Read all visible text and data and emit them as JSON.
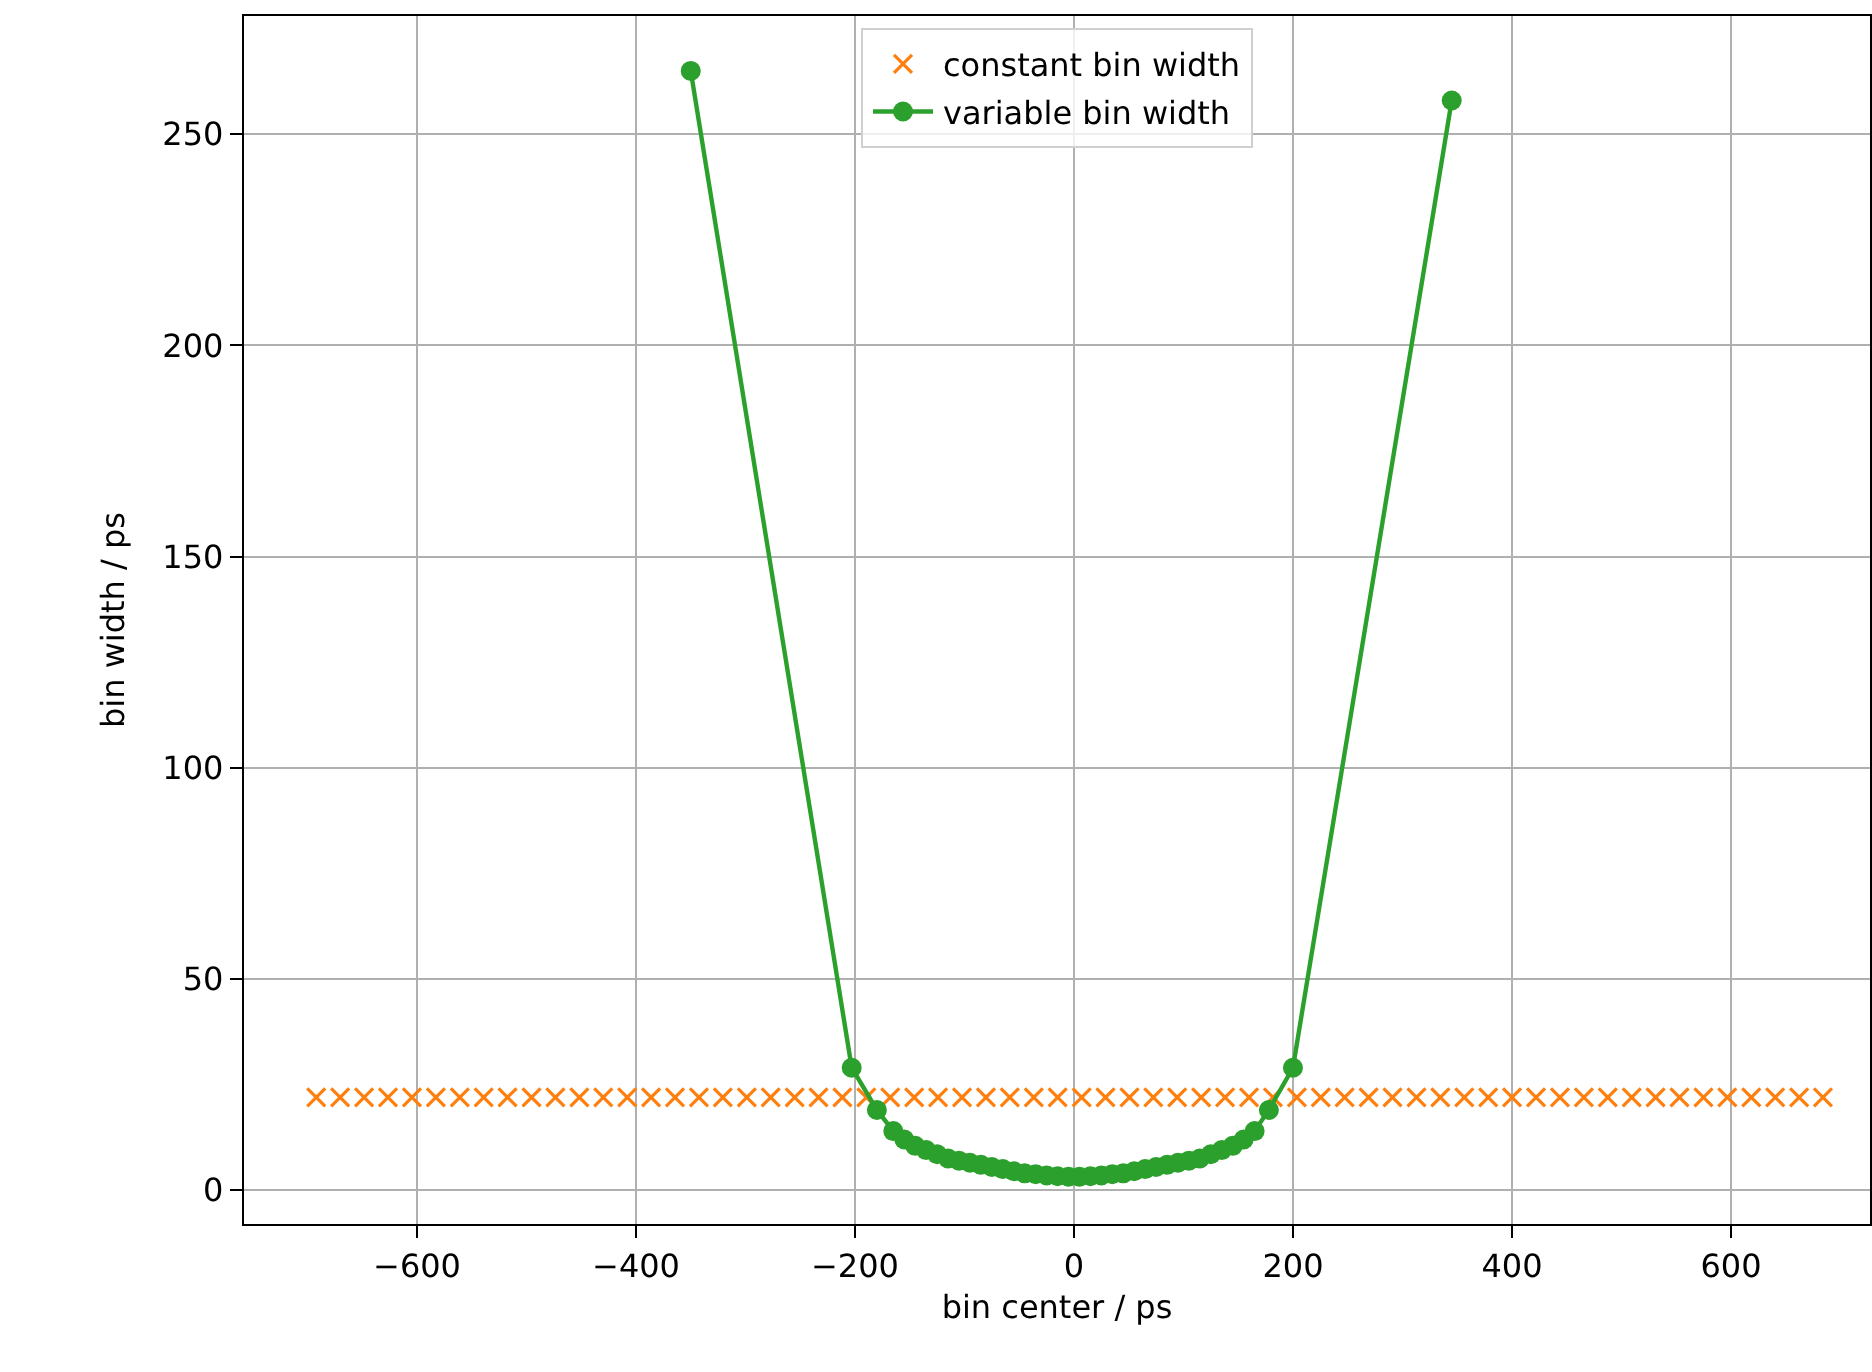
{
  "chart_data": {
    "type": "scatter",
    "xlabel": "bin center / ps",
    "ylabel": "bin width / ps",
    "xlim": [
      -758,
      727
    ],
    "ylim": [
      -8,
      278
    ],
    "xticks": [
      {
        "value": -600,
        "label": "−600"
      },
      {
        "value": -400,
        "label": "−400"
      },
      {
        "value": -200,
        "label": "−200"
      },
      0,
      200,
      400,
      600
    ],
    "yticks": [
      0,
      50,
      100,
      150,
      200,
      250
    ],
    "grid": true,
    "legend": "top",
    "line_style": "solid",
    "series": [
      {
        "name": "constant bin width",
        "type": "scatter",
        "marker": "cross",
        "color": "#ff7f0e",
        "x": [
          -692,
          -670.2,
          -648.3,
          -626.5,
          -604.6,
          -582.8,
          -560.9,
          -539.1,
          -517.3,
          -495.4,
          -473.6,
          -451.7,
          -429.9,
          -408,
          -386.2,
          -364.4,
          -342.5,
          -320.7,
          -298.8,
          -277,
          -255.1,
          -233.3,
          -211.5,
          -189.6,
          -167.8,
          -145.9,
          -124.1,
          -102.2,
          -80.4,
          -58.6,
          -36.7,
          -14.9,
          7,
          28.8,
          50.7,
          72.5,
          94.3,
          116.2,
          138,
          159.9,
          181.7,
          203.6,
          225.4,
          247.2,
          269.1,
          290.9,
          312.8,
          334.6,
          356.5,
          378.3,
          400.1,
          422,
          443.8,
          465.7,
          487.5,
          509.4,
          531.2,
          553,
          574.9,
          596.7,
          618.6,
          640.4,
          662.3,
          684
        ],
        "values": [
          22,
          22,
          22,
          22,
          22,
          22,
          22,
          22,
          22,
          22,
          22,
          22,
          22,
          22,
          22,
          22,
          22,
          22,
          22,
          22,
          22,
          22,
          22,
          22,
          22,
          22,
          22,
          22,
          22,
          22,
          22,
          22,
          22,
          22,
          22,
          22,
          22,
          22,
          22,
          22,
          22,
          22,
          22,
          22,
          22,
          22,
          22,
          22,
          22,
          22,
          22,
          22,
          22,
          22,
          22,
          22,
          22,
          22,
          22,
          22,
          22,
          22,
          22,
          22
        ]
      },
      {
        "name": "variable bin width",
        "type": "line",
        "marker": "circle",
        "color": "#2ca02c",
        "x": [
          -350,
          -203,
          -180,
          -165,
          -155,
          -145,
          -135,
          -125,
          -115,
          -105,
          -95,
          -85,
          -75,
          -65,
          -55,
          -45,
          -35,
          -25,
          -15,
          -5,
          5,
          15,
          25,
          35,
          45,
          55,
          65,
          75,
          85,
          95,
          105,
          115,
          125,
          135,
          145,
          155,
          165,
          178,
          200,
          345
        ],
        "values": [
          265,
          29,
          19,
          14,
          12,
          10.5,
          9.5,
          8.5,
          7.5,
          7,
          6.5,
          6,
          5.5,
          5,
          4.5,
          4,
          3.8,
          3.5,
          3.3,
          3.2,
          3.2,
          3.3,
          3.5,
          3.8,
          4,
          4.5,
          5,
          5.5,
          6,
          6.5,
          7,
          7.5,
          8.5,
          9.5,
          10.5,
          12,
          14,
          19,
          29,
          258
        ]
      }
    ]
  }
}
